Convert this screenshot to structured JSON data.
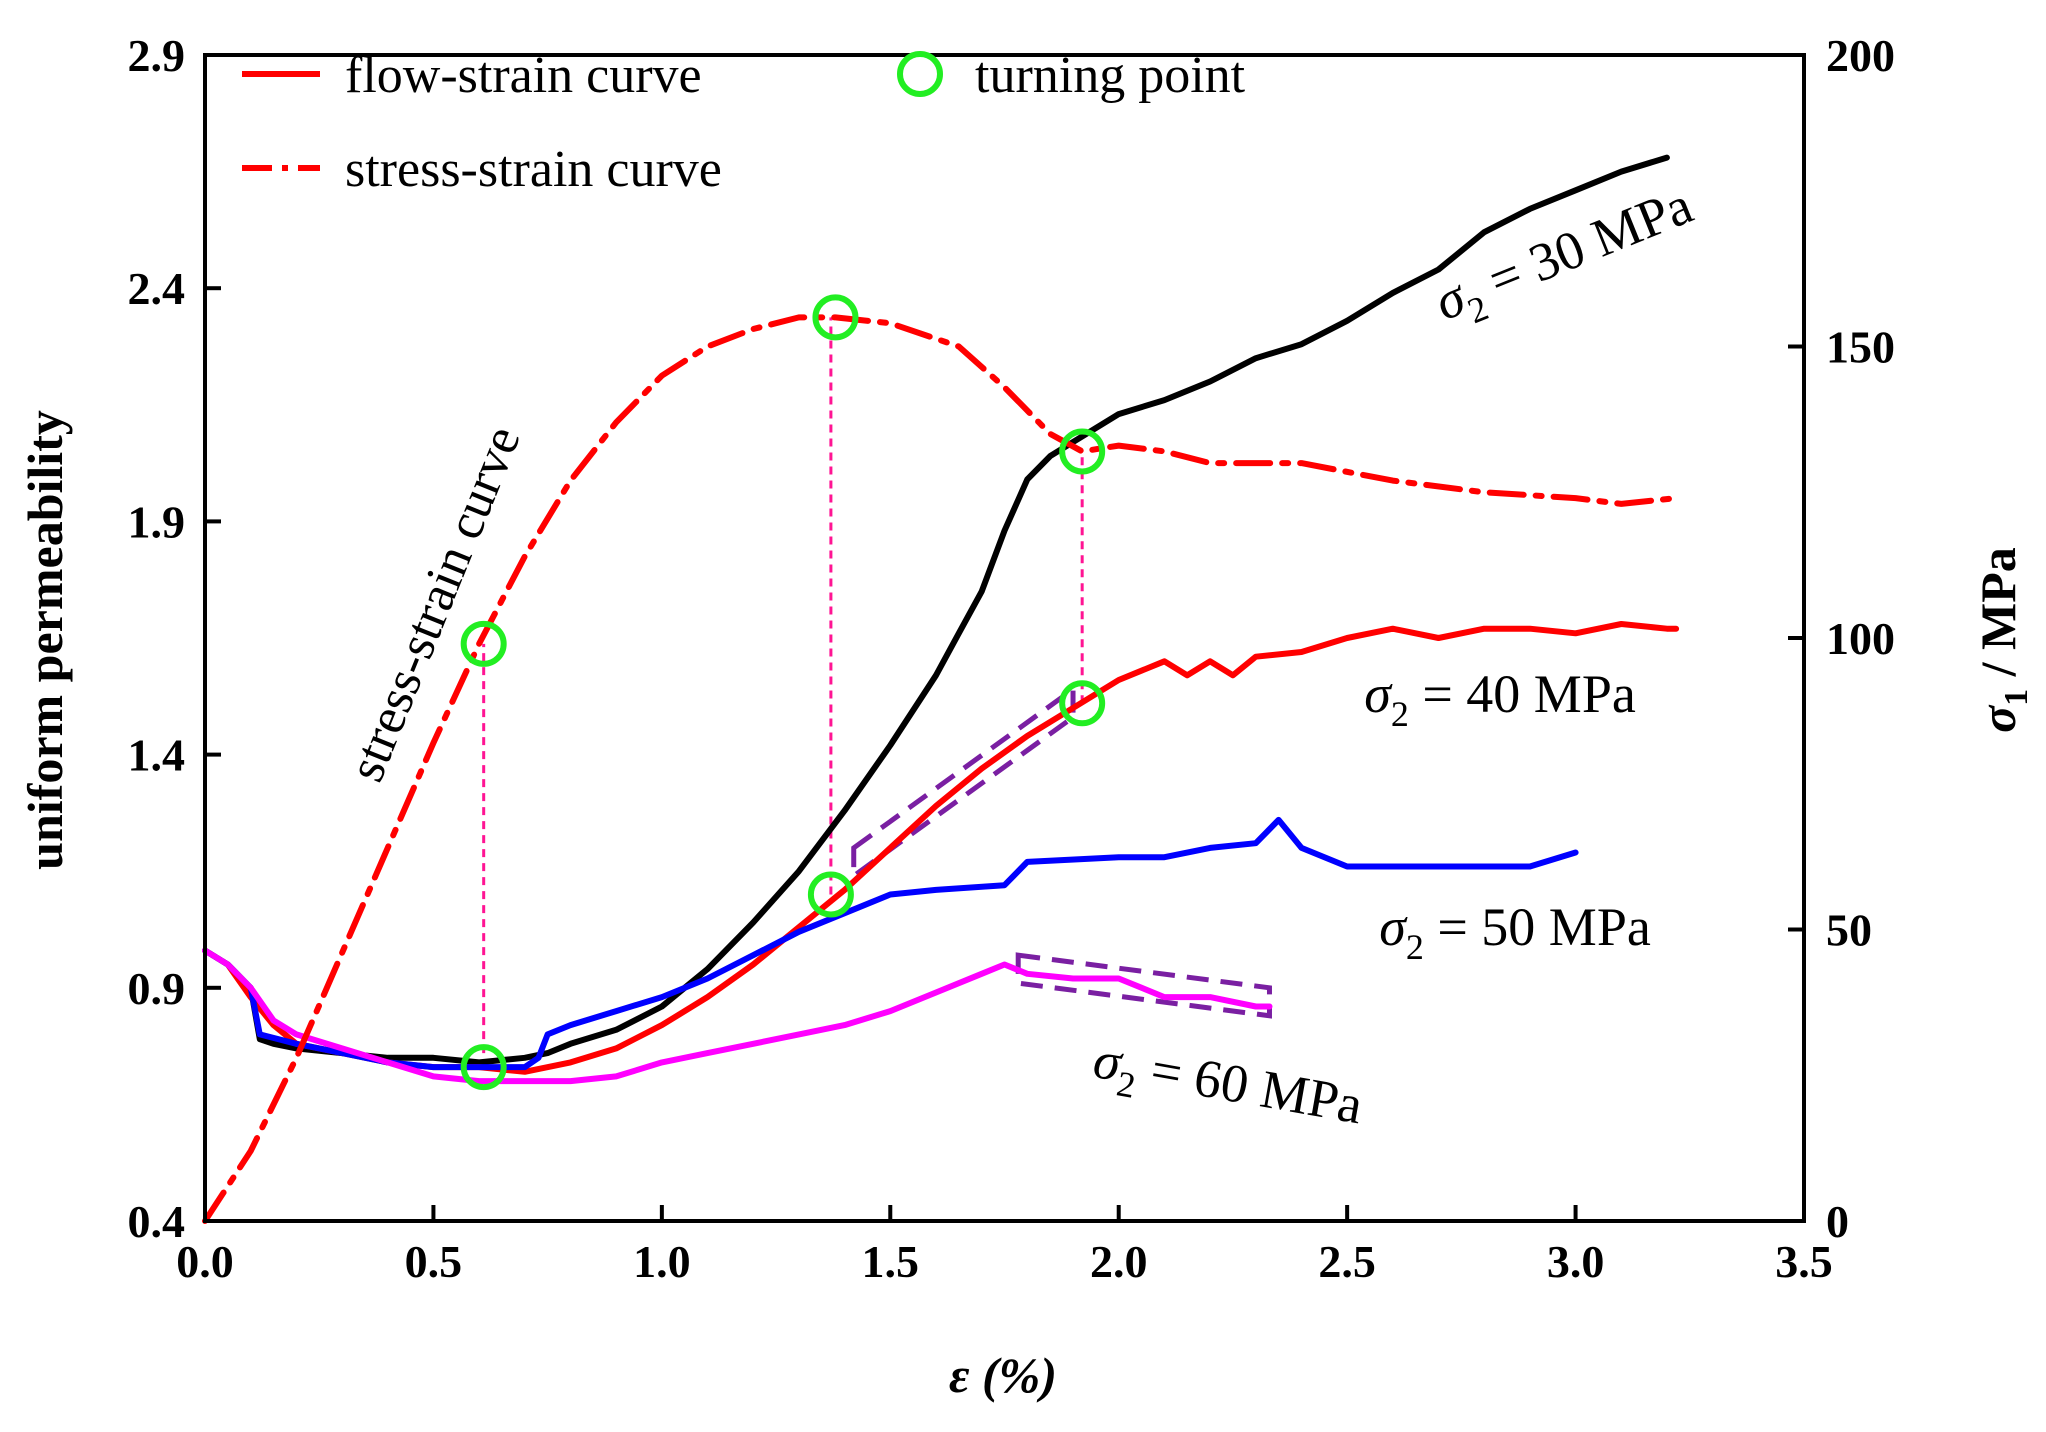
{
  "chart_data": {
    "type": "line",
    "title": "",
    "xlabel": "ε (%)",
    "ylabel_left": "uniform permeability",
    "ylabel_right": "σ1 / MPa",
    "ylabel_right_sigma": "σ",
    "ylabel_right_sub": "1",
    "ylabel_right_unit": " / MPa",
    "xlim": [
      0.0,
      3.5
    ],
    "ylim_left": [
      0.4,
      2.9
    ],
    "ylim_right": [
      0,
      200
    ],
    "x_ticks": [
      "0.0",
      "0.5",
      "1.0",
      "1.5",
      "2.0",
      "2.5",
      "3.0",
      "3.5"
    ],
    "y_left_ticks": [
      "0.4",
      "0.9",
      "1.4",
      "1.9",
      "2.4",
      "2.9"
    ],
    "y_right_ticks": [
      "0",
      "50",
      "100",
      "150",
      "200"
    ],
    "grid": false,
    "legend": {
      "position": "top-left",
      "entries": [
        {
          "label": "flow-strain curve",
          "style": "solid",
          "color": "#ff0000"
        },
        {
          "label": "turning point",
          "style": "circle-marker",
          "color": "#22ee22"
        },
        {
          "label": "stress-strain curve",
          "style": "dash-dot",
          "color": "#ff0000"
        }
      ]
    },
    "inline_label": "stress-strain curve",
    "series": [
      {
        "name": "σ2 = 30 MPa",
        "sigma": "σ",
        "sub": "2",
        "rest": " = 30 MPa",
        "color": "#000000",
        "axis": "left",
        "x": [
          0.0,
          0.05,
          0.1,
          0.12,
          0.15,
          0.2,
          0.3,
          0.4,
          0.5,
          0.6,
          0.7,
          0.75,
          0.8,
          0.9,
          1.0,
          1.1,
          1.2,
          1.3,
          1.4,
          1.5,
          1.6,
          1.65,
          1.7,
          1.75,
          1.8,
          1.85,
          1.9,
          2.0,
          2.1,
          2.2,
          2.3,
          2.4,
          2.5,
          2.6,
          2.7,
          2.8,
          2.9,
          3.0,
          3.1,
          3.2
        ],
        "values": [
          0.98,
          0.95,
          0.9,
          0.79,
          0.78,
          0.77,
          0.76,
          0.75,
          0.75,
          0.74,
          0.75,
          0.76,
          0.78,
          0.81,
          0.86,
          0.94,
          1.04,
          1.15,
          1.28,
          1.42,
          1.57,
          1.66,
          1.75,
          1.88,
          1.99,
          2.04,
          2.07,
          2.13,
          2.16,
          2.2,
          2.25,
          2.28,
          2.33,
          2.39,
          2.44,
          2.52,
          2.57,
          2.61,
          2.65,
          2.68
        ]
      },
      {
        "name": "σ2 = 40 MPa",
        "sigma": "σ",
        "sub": "2",
        "rest": " = 40 MPa",
        "color": "#ff0000",
        "axis": "left",
        "x": [
          0.0,
          0.05,
          0.1,
          0.15,
          0.2,
          0.3,
          0.4,
          0.5,
          0.6,
          0.7,
          0.8,
          0.9,
          1.0,
          1.1,
          1.2,
          1.3,
          1.4,
          1.5,
          1.6,
          1.7,
          1.8,
          1.9,
          2.0,
          2.1,
          2.15,
          2.2,
          2.25,
          2.3,
          2.4,
          2.5,
          2.6,
          2.7,
          2.8,
          2.9,
          3.0,
          3.1,
          3.2,
          3.22
        ],
        "values": [
          0.98,
          0.95,
          0.88,
          0.82,
          0.78,
          0.76,
          0.74,
          0.73,
          0.73,
          0.72,
          0.74,
          0.77,
          0.82,
          0.88,
          0.95,
          1.03,
          1.11,
          1.2,
          1.29,
          1.37,
          1.44,
          1.5,
          1.56,
          1.6,
          1.57,
          1.6,
          1.57,
          1.61,
          1.62,
          1.65,
          1.67,
          1.65,
          1.67,
          1.67,
          1.66,
          1.68,
          1.67,
          1.67
        ]
      },
      {
        "name": "σ2 = 50 MPa",
        "sigma": "σ",
        "sub": "2",
        "rest": " = 50 MPa",
        "color": "#0000ff",
        "axis": "left",
        "x": [
          0.0,
          0.05,
          0.1,
          0.12,
          0.2,
          0.3,
          0.4,
          0.5,
          0.6,
          0.7,
          0.73,
          0.75,
          0.8,
          0.9,
          1.0,
          1.1,
          1.2,
          1.3,
          1.4,
          1.5,
          1.6,
          1.75,
          1.8,
          2.0,
          2.1,
          2.2,
          2.3,
          2.35,
          2.4,
          2.5,
          2.7,
          2.9,
          3.0
        ],
        "values": [
          0.98,
          0.95,
          0.9,
          0.8,
          0.78,
          0.76,
          0.74,
          0.73,
          0.73,
          0.73,
          0.75,
          0.8,
          0.82,
          0.85,
          0.88,
          0.92,
          0.97,
          1.02,
          1.06,
          1.1,
          1.11,
          1.12,
          1.17,
          1.18,
          1.18,
          1.2,
          1.21,
          1.26,
          1.2,
          1.16,
          1.16,
          1.16,
          1.19
        ]
      },
      {
        "name": "σ2 = 60 MPa",
        "sigma": "σ",
        "sub": "2",
        "rest": " = 60 MPa",
        "color": "#ff00ff",
        "axis": "left",
        "x": [
          0.0,
          0.05,
          0.1,
          0.15,
          0.2,
          0.3,
          0.4,
          0.5,
          0.6,
          0.7,
          0.8,
          0.9,
          1.0,
          1.1,
          1.2,
          1.3,
          1.4,
          1.5,
          1.6,
          1.7,
          1.75,
          1.8,
          1.9,
          2.0,
          2.1,
          2.2,
          2.3,
          2.33
        ],
        "values": [
          0.98,
          0.95,
          0.9,
          0.83,
          0.8,
          0.77,
          0.74,
          0.71,
          0.7,
          0.7,
          0.7,
          0.71,
          0.74,
          0.76,
          0.78,
          0.8,
          0.82,
          0.85,
          0.89,
          0.93,
          0.95,
          0.93,
          0.92,
          0.92,
          0.88,
          0.88,
          0.86,
          0.86
        ]
      },
      {
        "name": "stress-strain curve",
        "color": "#ff0000",
        "axis": "right",
        "style": "dash-dot",
        "x": [
          0.0,
          0.1,
          0.2,
          0.3,
          0.4,
          0.5,
          0.6,
          0.7,
          0.8,
          0.9,
          1.0,
          1.1,
          1.2,
          1.3,
          1.38,
          1.5,
          1.65,
          1.75,
          1.85,
          1.92,
          2.0,
          2.1,
          2.2,
          2.4,
          2.6,
          2.8,
          3.0,
          3.1,
          3.22
        ],
        "values": [
          0,
          12,
          28,
          46,
          64,
          82,
          99,
          114,
          127,
          137,
          145,
          150,
          153,
          155,
          155,
          154,
          150,
          143,
          135,
          132,
          133,
          132,
          130,
          130,
          127,
          125,
          124,
          123,
          124
        ]
      }
    ],
    "turning_points": [
      {
        "x": 0.61,
        "axis": "left",
        "y": 0.73
      },
      {
        "x": 0.61,
        "axis": "right",
        "y": 99
      },
      {
        "x": 1.37,
        "axis": "left",
        "y": 1.1
      },
      {
        "x": 1.38,
        "axis": "right",
        "y": 155
      },
      {
        "x": 1.92,
        "axis": "left",
        "y": 1.51
      },
      {
        "x": 1.92,
        "axis": "right",
        "y": 132
      }
    ],
    "turning_point_guides": [
      {
        "x": 0.61,
        "y_bottom_left": 0.73,
        "y_top_right": 99
      },
      {
        "x": 1.37,
        "y_bottom_left": 1.1,
        "y_top_right": 155
      },
      {
        "x": 1.92,
        "y_bottom_left": 1.51,
        "y_top_right": 132
      }
    ],
    "highlight_bands": [
      {
        "series": "σ2 = 40 MPa",
        "x": [
          1.42,
          1.9
        ],
        "y_lower": [
          1.14,
          1.48
        ],
        "y_upper": [
          1.2,
          1.54
        ]
      },
      {
        "series": "σ2 = 60 MPa",
        "x": [
          1.78,
          2.33
        ],
        "y_lower": [
          0.91,
          0.84
        ],
        "y_upper": [
          0.97,
          0.9
        ]
      }
    ]
  }
}
